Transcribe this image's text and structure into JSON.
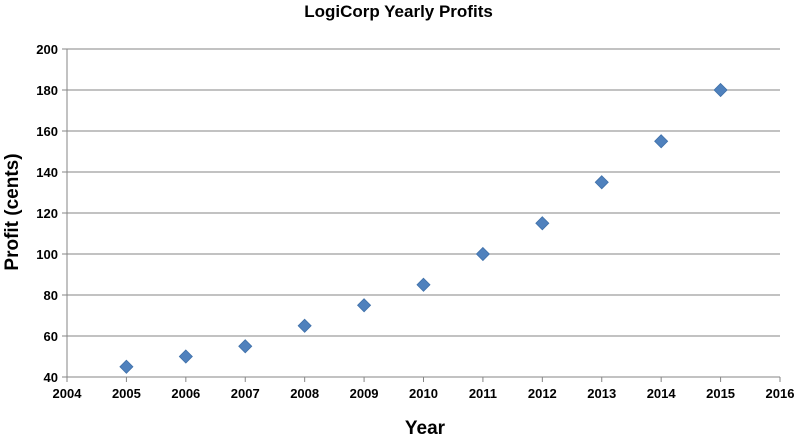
{
  "chart_data": {
    "type": "scatter",
    "title": "LogiCorp Yearly Profits",
    "xlabel": "Year",
    "ylabel": "Profit (cents)",
    "xlim": [
      2004,
      2016
    ],
    "ylim": [
      40,
      200
    ],
    "x_ticks": [
      2004,
      2005,
      2006,
      2007,
      2008,
      2009,
      2010,
      2011,
      2012,
      2013,
      2014,
      2015,
      2016
    ],
    "y_ticks": [
      40,
      60,
      80,
      100,
      120,
      140,
      160,
      180,
      200
    ],
    "grid": "horizontal",
    "marker": "diamond",
    "color": "#4F81BD",
    "series": [
      {
        "x": [
          2005,
          2006,
          2007,
          2008,
          2009,
          2010,
          2011,
          2012,
          2013,
          2014,
          2015
        ],
        "y": [
          45,
          50,
          55,
          65,
          75,
          85,
          100,
          115,
          135,
          155,
          180
        ]
      }
    ]
  }
}
